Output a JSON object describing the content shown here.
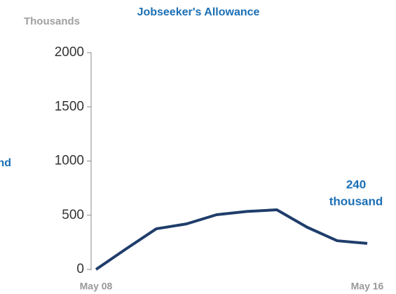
{
  "chart_data": {
    "type": "line",
    "title": "Jobseeker's Allowance",
    "unit_label": "Thousands",
    "categories": [
      "May 08",
      null,
      null,
      null,
      null,
      null,
      null,
      null,
      null,
      "May 16"
    ],
    "values": [
      0,
      190,
      375,
      420,
      505,
      535,
      550,
      390,
      265,
      240
    ],
    "color": "#1f3d6b",
    "ylim": [
      0,
      2000
    ],
    "yticks": [
      0,
      500,
      1000,
      1500,
      2000
    ],
    "annotation": [
      "240",
      "thousand"
    ],
    "side_note": "nd"
  }
}
